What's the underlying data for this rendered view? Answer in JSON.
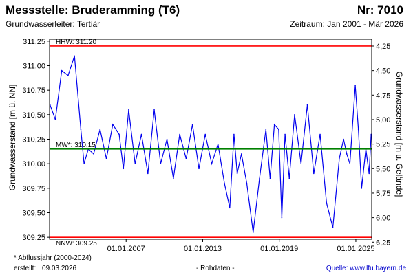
{
  "header": {
    "title": "Messstelle: Bruderamming (T6)",
    "number": "Nr: 7010",
    "subtitle": "Grundwasserleiter: Tertiär",
    "period": "Zeitraum: Jan 2001 - Mär 2026"
  },
  "footer": {
    "note": "* Abflussjahr (2000-2024)",
    "created_label": "erstellt:",
    "created_date": "09.03.2026",
    "data_type": "- Rohdaten -",
    "source": "Quelle: www.lfu.bayern.de"
  },
  "colors": {
    "series": "#0000ee",
    "hhw": "#ff0000",
    "nnw": "#ff0000",
    "mw": "#008000"
  },
  "chart_data": {
    "type": "line",
    "title": "Messstelle: Bruderamming (T6)",
    "ylabel": "Grundwasserstand [m ü. NN]",
    "ylabel_right": "Grundwasserstand [m u. Gelände]",
    "ylim": [
      309.23,
      311.27
    ],
    "y_ticks": [
      "311,25",
      "311,00",
      "310,75",
      "310,50",
      "310,25",
      "310,00",
      "309,75",
      "309,50",
      "309,25"
    ],
    "y_tick_values": [
      311.25,
      311.0,
      310.75,
      310.5,
      310.25,
      310.0,
      309.75,
      309.5,
      309.25
    ],
    "y2_ticks": [
      "4,25",
      "4,50",
      "4,75",
      "5,00",
      "5,25",
      "5,50",
      "5,75",
      "6,00",
      "6,25"
    ],
    "y2_tick_values": [
      4.25,
      4.5,
      4.75,
      5.0,
      5.25,
      5.5,
      5.75,
      6.0,
      6.25
    ],
    "y2_offset": 315.45,
    "xlim": [
      "2001-01-01",
      "2026-03-31"
    ],
    "x_ticks": [
      "01.01.2007",
      "01.01.2013",
      "01.01.2019",
      "01.01.2025"
    ],
    "x_tick_dates": [
      "2007-01-01",
      "2013-01-01",
      "2019-01-01",
      "2025-01-01"
    ],
    "grid": false,
    "reference_lines": [
      {
        "label": "HHW: 311.20",
        "value": 311.2
      },
      {
        "label": "MW*: 310.15",
        "value": 310.15
      },
      {
        "label": "NNW: 309.25",
        "value": 309.25
      }
    ],
    "series": [
      {
        "x": [
          "2001-01",
          "2001-06",
          "2001-12",
          "2002-06",
          "2002-12",
          "2003-06",
          "2003-09",
          "2004-01",
          "2004-06",
          "2004-12",
          "2005-06",
          "2005-12",
          "2006-06",
          "2006-10",
          "2007-03",
          "2007-09",
          "2008-03",
          "2008-09",
          "2009-03",
          "2009-09",
          "2010-03",
          "2010-09",
          "2011-03",
          "2011-09",
          "2012-03",
          "2012-09",
          "2013-03",
          "2013-09",
          "2014-03",
          "2014-09",
          "2015-02",
          "2015-06",
          "2015-09",
          "2016-01",
          "2016-06",
          "2016-12",
          "2017-06",
          "2017-12",
          "2018-04",
          "2018-08",
          "2018-12",
          "2019-03",
          "2019-06",
          "2019-10",
          "2020-03",
          "2020-09",
          "2021-03",
          "2021-09",
          "2022-03",
          "2022-09",
          "2023-03",
          "2023-09",
          "2024-01",
          "2024-04",
          "2024-07",
          "2024-12",
          "2025-03",
          "2025-06",
          "2025-10",
          "2026-01",
          "2026-03"
        ],
        "y": [
          310.6,
          310.45,
          310.95,
          310.9,
          311.1,
          310.35,
          310.0,
          310.15,
          310.1,
          310.35,
          310.05,
          310.4,
          310.3,
          309.95,
          310.55,
          310.0,
          310.3,
          309.9,
          310.55,
          310.0,
          310.25,
          309.85,
          310.3,
          310.05,
          310.4,
          309.95,
          310.3,
          310.0,
          310.2,
          309.8,
          309.55,
          310.3,
          309.9,
          310.1,
          309.8,
          309.3,
          309.85,
          310.35,
          309.85,
          310.4,
          310.35,
          309.45,
          310.3,
          309.85,
          310.5,
          310.0,
          310.6,
          309.9,
          310.3,
          309.6,
          309.35,
          310.05,
          310.25,
          310.1,
          310.0,
          310.8,
          310.35,
          309.75,
          310.15,
          309.9,
          310.3
        ]
      }
    ]
  }
}
